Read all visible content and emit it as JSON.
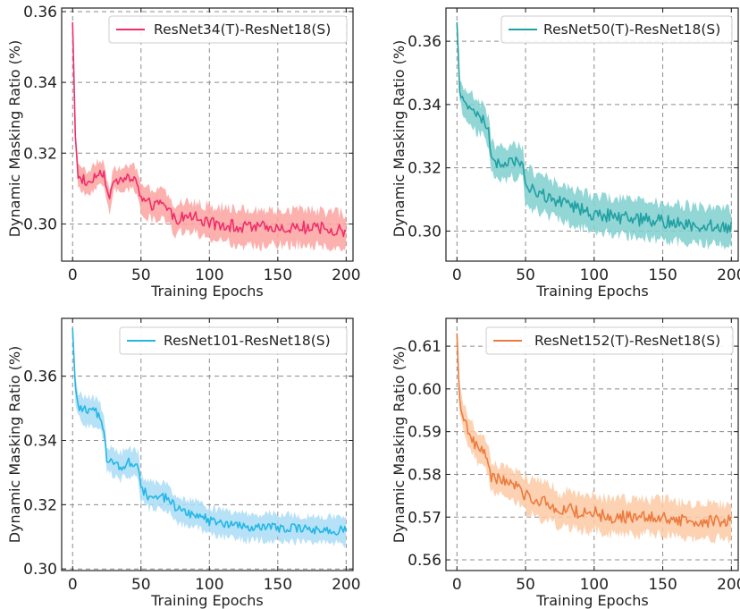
{
  "chart_data": [
    {
      "type": "line",
      "title": "",
      "xlabel": "Training Epochs",
      "ylabel": "Dynamic Masking Ratio (%)",
      "xlim": [
        -8,
        205
      ],
      "ylim": [
        0.2895,
        0.361
      ],
      "xticks": [
        0,
        50,
        100,
        150,
        200
      ],
      "yticks": [
        0.3,
        0.32,
        0.34,
        0.36
      ],
      "ytick_labels": [
        "0.30",
        "0.32",
        "0.34",
        "0.36"
      ],
      "grid": true,
      "legend_position": "top-right",
      "band": "shaded min-max range around series",
      "color": "#f02e6a",
      "band_color": "#fba3a0",
      "series": [
        {
          "name": "ResNet34(T)-ResNet18(S)",
          "x": [
            0,
            2,
            4,
            6,
            8,
            10,
            15,
            20,
            23,
            25,
            27,
            30,
            35,
            40,
            45,
            48,
            50,
            55,
            60,
            65,
            70,
            75,
            80,
            90,
            100,
            110,
            125,
            150,
            175,
            200
          ],
          "values": [
            0.357,
            0.325,
            0.314,
            0.312,
            0.313,
            0.311,
            0.313,
            0.315,
            0.314,
            0.31,
            0.306,
            0.313,
            0.312,
            0.313,
            0.313,
            0.311,
            0.307,
            0.306,
            0.305,
            0.306,
            0.304,
            0.301,
            0.302,
            0.302,
            0.3,
            0.3,
            0.299,
            0.299,
            0.299,
            0.298
          ],
          "spread": [
            0,
            0.002,
            0.004,
            0.004,
            0.004,
            0.004,
            0.004,
            0.004,
            0.004,
            0.004,
            0.004,
            0.004,
            0.004,
            0.004,
            0.004,
            0.004,
            0.005,
            0.005,
            0.005,
            0.005,
            0.005,
            0.005,
            0.005,
            0.005,
            0.006,
            0.006,
            0.006,
            0.006,
            0.006,
            0.006
          ]
        }
      ]
    },
    {
      "type": "line",
      "title": "",
      "xlabel": "Training Epochs",
      "ylabel": "Dynamic Masking Ratio (%)",
      "xlim": [
        -8,
        205
      ],
      "ylim": [
        0.2905,
        0.3705
      ],
      "xticks": [
        0,
        50,
        100,
        150,
        200
      ],
      "yticks": [
        0.3,
        0.32,
        0.34,
        0.36
      ],
      "ytick_labels": [
        "0.30",
        "0.32",
        "0.34",
        "0.36"
      ],
      "grid": true,
      "legend_position": "top-right",
      "band": "shaded min-max range around series",
      "color": "#21a0a2",
      "band_color": "#7fcfcf",
      "series": [
        {
          "name": "ResNet50(T)-ResNet18(S)",
          "x": [
            0,
            2,
            5,
            10,
            15,
            20,
            23,
            25,
            28,
            30,
            35,
            40,
            45,
            48,
            50,
            55,
            60,
            70,
            80,
            90,
            100,
            110,
            125,
            150,
            175,
            200
          ],
          "values": [
            0.366,
            0.345,
            0.34,
            0.339,
            0.336,
            0.335,
            0.331,
            0.324,
            0.321,
            0.322,
            0.321,
            0.322,
            0.322,
            0.322,
            0.314,
            0.313,
            0.312,
            0.31,
            0.308,
            0.307,
            0.305,
            0.305,
            0.304,
            0.303,
            0.302,
            0.301
          ],
          "spread": [
            0,
            0.004,
            0.005,
            0.006,
            0.006,
            0.006,
            0.006,
            0.006,
            0.006,
            0.006,
            0.006,
            0.006,
            0.006,
            0.006,
            0.007,
            0.007,
            0.007,
            0.007,
            0.007,
            0.007,
            0.007,
            0.007,
            0.007,
            0.007,
            0.007,
            0.007
          ]
        }
      ]
    },
    {
      "type": "line",
      "title": "",
      "xlabel": "Training Epochs",
      "ylabel": "Dynamic Masking Ratio (%)",
      "xlim": [
        -8,
        205
      ],
      "ylim": [
        0.2995,
        0.378
      ],
      "xticks": [
        0,
        50,
        100,
        150,
        200
      ],
      "yticks": [
        0.3,
        0.32,
        0.34,
        0.36
      ],
      "ytick_labels": [
        "0.30",
        "0.32",
        "0.34",
        "0.36"
      ],
      "grid": true,
      "legend_position": "top-right",
      "band": "shaded min-max range around series",
      "color": "#23b7e5",
      "band_color": "#aadcf6",
      "series": [
        {
          "name": "ResNet101-ResNet18(S)",
          "x": [
            0,
            2,
            4,
            6,
            10,
            15,
            20,
            23,
            25,
            28,
            30,
            35,
            40,
            45,
            48,
            50,
            55,
            60,
            70,
            75,
            80,
            90,
            100,
            110,
            125,
            150,
            175,
            200
          ],
          "values": [
            0.375,
            0.356,
            0.351,
            0.35,
            0.349,
            0.349,
            0.348,
            0.344,
            0.334,
            0.334,
            0.333,
            0.332,
            0.333,
            0.333,
            0.332,
            0.325,
            0.323,
            0.323,
            0.322,
            0.319,
            0.318,
            0.317,
            0.315,
            0.314,
            0.313,
            0.313,
            0.312,
            0.312
          ],
          "spread": [
            0,
            0.004,
            0.005,
            0.005,
            0.005,
            0.005,
            0.005,
            0.005,
            0.005,
            0.005,
            0.005,
            0.005,
            0.005,
            0.005,
            0.005,
            0.005,
            0.005,
            0.005,
            0.005,
            0.005,
            0.005,
            0.005,
            0.005,
            0.005,
            0.005,
            0.005,
            0.005,
            0.005
          ]
        }
      ]
    },
    {
      "type": "line",
      "title": "",
      "xlabel": "Training Epochs",
      "ylabel": "Dynamic Masking Ratio (%)",
      "xlim": [
        -8,
        205
      ],
      "ylim": [
        0.5575,
        0.6165
      ],
      "xticks": [
        0,
        50,
        100,
        150,
        200
      ],
      "yticks": [
        0.56,
        0.57,
        0.58,
        0.59,
        0.6,
        0.61
      ],
      "ytick_labels": [
        "0.56",
        "0.57",
        "0.58",
        "0.59",
        "0.60",
        "0.61"
      ],
      "grid": true,
      "legend_position": "top-right",
      "band": "shaded min-max range around series",
      "color": "#ec7b3f",
      "band_color": "#fbcaa4",
      "series": [
        {
          "name": "ResNet152(T)-ResNet18(S)",
          "x": [
            0,
            2,
            5,
            10,
            15,
            20,
            23,
            25,
            30,
            40,
            50,
            60,
            70,
            75,
            80,
            90,
            100,
            110,
            125,
            150,
            175,
            200
          ],
          "values": [
            0.613,
            0.597,
            0.593,
            0.589,
            0.586,
            0.585,
            0.583,
            0.579,
            0.579,
            0.578,
            0.575,
            0.574,
            0.573,
            0.571,
            0.572,
            0.571,
            0.571,
            0.57,
            0.57,
            0.57,
            0.569,
            0.569
          ],
          "spread": [
            0,
            0.004,
            0.004,
            0.004,
            0.004,
            0.004,
            0.004,
            0.004,
            0.004,
            0.004,
            0.005,
            0.005,
            0.005,
            0.005,
            0.005,
            0.005,
            0.005,
            0.005,
            0.005,
            0.005,
            0.005,
            0.005
          ]
        }
      ]
    }
  ]
}
